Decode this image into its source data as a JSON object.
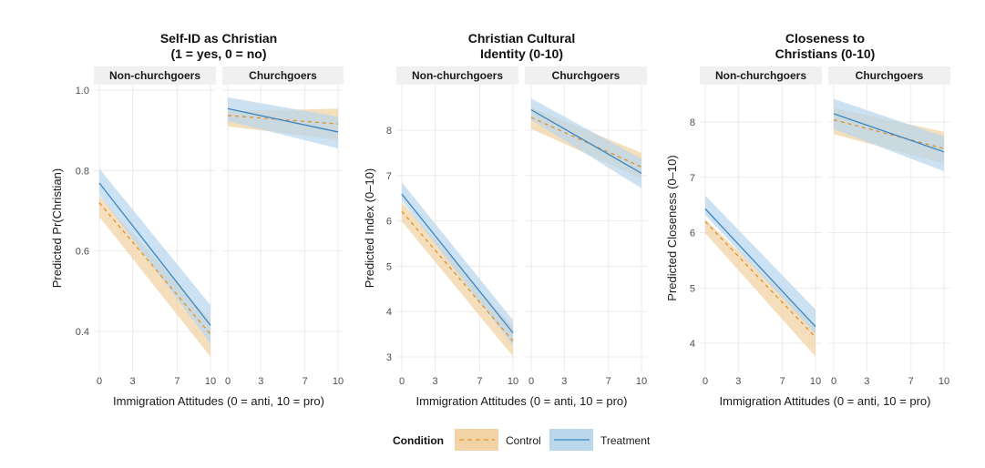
{
  "chart_data": {
    "type": "line",
    "x_label": "Immigration Attitudes (0 = anti, 10 = pro)",
    "x_ticks": [
      0,
      3,
      7,
      10
    ],
    "x_range": [
      0,
      10
    ],
    "facets": [
      "Non-churchgoers",
      "Churchgoers"
    ],
    "legend": {
      "title": "Condition",
      "position": "bottom",
      "entries": [
        {
          "name": "Control",
          "color": "#E0922B",
          "fill": "#F2D3A6",
          "linetype": "dashed"
        },
        {
          "name": "Treatment",
          "color": "#3B86C0",
          "fill": "#BBD7EC",
          "linetype": "solid"
        }
      ]
    },
    "panels": [
      {
        "title_lines": [
          "Self-ID as Christian",
          "(1 = yes, 0 = no)"
        ],
        "ylabel": "Predicted Pr(Christian)",
        "y_ticks": [
          0.4,
          0.6,
          0.8,
          1.0
        ],
        "y_tick_labels": [
          "0.4",
          "0.6",
          "0.8",
          "1.0"
        ],
        "ylim": [
          0.33,
          1.01
        ],
        "facets": {
          "Non-churchgoers": {
            "Control": {
              "x": [
                0,
                10
              ],
              "fit": [
                0.72,
                0.393
              ],
              "lower": [
                0.685,
                0.337
              ],
              "upper": [
                0.737,
                0.427
              ]
            },
            "Treatment": {
              "x": [
                0,
                10
              ],
              "fit": [
                0.769,
                0.415
              ],
              "lower": [
                0.74,
                0.37
              ],
              "upper": [
                0.805,
                0.465
              ]
            }
          },
          "Churchgoers": {
            "Control": {
              "x": [
                0,
                10
              ],
              "fit": [
                0.937,
                0.916
              ],
              "lower": [
                0.91,
                0.877
              ],
              "upper": [
                0.948,
                0.954
              ]
            },
            "Treatment": {
              "x": [
                0,
                10
              ],
              "fit": [
                0.954,
                0.896
              ],
              "lower": [
                0.923,
                0.855
              ],
              "upper": [
                0.982,
                0.934
              ]
            }
          }
        }
      },
      {
        "title_lines": [
          "Christian Cultural",
          "Identity (0-10)"
        ],
        "ylabel": "Predicted Index (0–10)",
        "y_ticks": [
          3,
          4,
          5,
          6,
          7,
          8
        ],
        "y_tick_labels": [
          "3",
          "4",
          "5",
          "6",
          "7",
          "8"
        ],
        "ylim": [
          2.7,
          9.0
        ],
        "facets": {
          "Non-churchgoers": {
            "Control": {
              "x": [
                0,
                10
              ],
              "fit": [
                6.21,
                3.35
              ],
              "lower": [
                5.99,
                3.01
              ],
              "upper": [
                6.41,
                3.65
              ]
            },
            "Treatment": {
              "x": [
                0,
                10
              ],
              "fit": [
                6.59,
                3.53
              ],
              "lower": [
                6.45,
                3.25
              ],
              "upper": [
                6.85,
                3.81
              ]
            }
          },
          "Churchgoers": {
            "Control": {
              "x": [
                0,
                10
              ],
              "fit": [
                8.28,
                7.19
              ],
              "lower": [
                8.03,
                6.93
              ],
              "upper": [
                8.5,
                7.5
              ]
            },
            "Treatment": {
              "x": [
                0,
                10
              ],
              "fit": [
                8.45,
                7.05
              ],
              "lower": [
                8.23,
                6.72
              ],
              "upper": [
                8.7,
                7.37
              ]
            }
          }
        }
      },
      {
        "title_lines": [
          "Closeness to",
          "Christians (0-10)"
        ],
        "ylabel": "Predicted Closeness (0–10)",
        "y_ticks": [
          4,
          5,
          6,
          7,
          8
        ],
        "y_tick_labels": [
          "4",
          "5",
          "6",
          "7",
          "8"
        ],
        "ylim": [
          3.5,
          8.65
        ],
        "facets": {
          "Non-churchgoers": {
            "Control": {
              "x": [
                0,
                10
              ],
              "fit": [
                6.2,
                4.11
              ],
              "lower": [
                5.99,
                3.76
              ],
              "upper": [
                6.24,
                4.34
              ]
            },
            "Treatment": {
              "x": [
                0,
                10
              ],
              "fit": [
                6.43,
                4.3
              ],
              "lower": [
                6.32,
                4.17
              ],
              "upper": [
                6.67,
                4.61
              ]
            }
          },
          "Churchgoers": {
            "Control": {
              "x": [
                0,
                10
              ],
              "fit": [
                8.04,
                7.52
              ],
              "lower": [
                7.78,
                7.25
              ],
              "upper": [
                8.26,
                7.82
              ]
            },
            "Treatment": {
              "x": [
                0,
                10
              ],
              "fit": [
                8.15,
                7.46
              ],
              "lower": [
                7.87,
                7.11
              ],
              "upper": [
                8.42,
                7.74
              ]
            }
          }
        }
      }
    ]
  }
}
